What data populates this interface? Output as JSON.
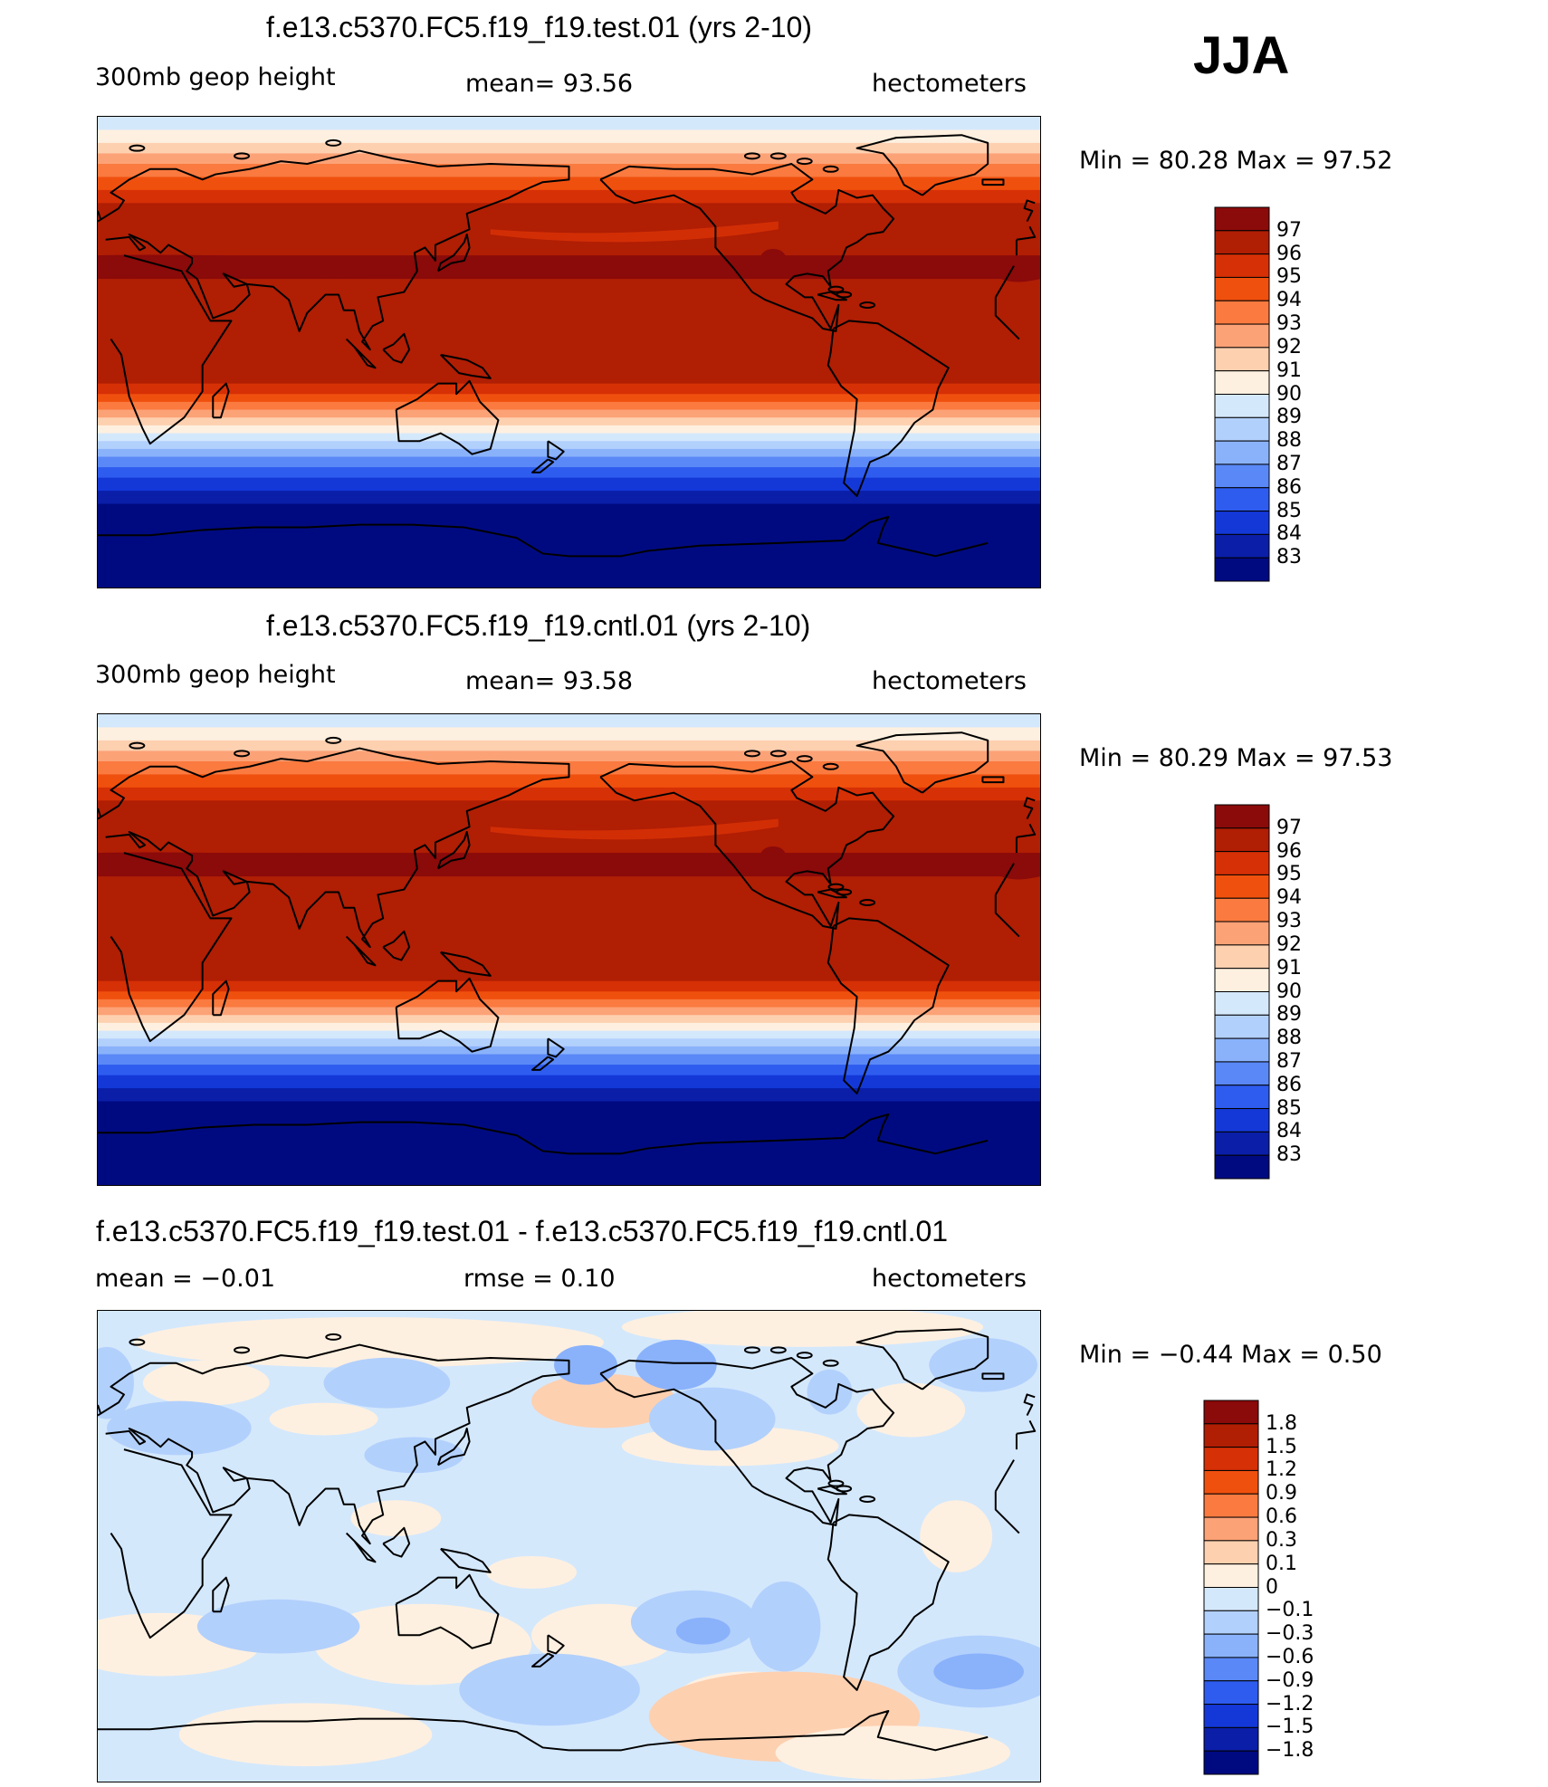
{
  "season": "JJA",
  "panels": [
    {
      "title": "f.e13.c5370.FC5.f19_f19.test.01 (yrs 2-10)",
      "left_label": "300mb geop height",
      "mid_label": "mean=   93.56",
      "units": "hectometers",
      "minmax": "Min =   80.28 Max =   97.52",
      "colorbar_labels": [
        "97",
        "96",
        "95",
        "94",
        "93",
        "92",
        "91",
        "90",
        "89",
        "88",
        "87",
        "86",
        "85",
        "84",
        "83"
      ],
      "colorbar_colors": [
        "#8b0a0a",
        "#b01e04",
        "#d63006",
        "#f0500e",
        "#fa7a3f",
        "#fca277",
        "#fdd0b0",
        "#fef0e0",
        "#d4e8fc",
        "#b2d0fc",
        "#8ab2fb",
        "#5a88f7",
        "#2e5cef",
        "#1438d8",
        "#0a1ea8",
        "#000a80"
      ],
      "field": "height"
    },
    {
      "title": "f.e13.c5370.FC5.f19_f19.cntl.01 (yrs 2-10)",
      "left_label": "300mb geop height",
      "mid_label": "mean=   93.58",
      "units": "hectometers",
      "minmax": "Min =   80.29 Max =   97.53",
      "colorbar_labels": [
        "97",
        "96",
        "95",
        "94",
        "93",
        "92",
        "91",
        "90",
        "89",
        "88",
        "87",
        "86",
        "85",
        "84",
        "83"
      ],
      "colorbar_colors": [
        "#8b0a0a",
        "#b01e04",
        "#d63006",
        "#f0500e",
        "#fa7a3f",
        "#fca277",
        "#fdd0b0",
        "#fef0e0",
        "#d4e8fc",
        "#b2d0fc",
        "#8ab2fb",
        "#5a88f7",
        "#2e5cef",
        "#1438d8",
        "#0a1ea8",
        "#000a80"
      ],
      "field": "height"
    },
    {
      "title": "f.e13.c5370.FC5.f19_f19.test.01 - f.e13.c5370.FC5.f19_f19.cntl.01",
      "left_label": "mean =   −0.01",
      "mid_label": "rmse =    0.10",
      "units": "hectometers",
      "minmax": "Min =   −0.44 Max =    0.50",
      "colorbar_labels": [
        "1.8",
        "1.5",
        "1.2",
        "0.9",
        "0.6",
        "0.3",
        "0.1",
        "0",
        "−0.1",
        "−0.3",
        "−0.6",
        "−0.9",
        "−1.2",
        "−1.5",
        "−1.8"
      ],
      "colorbar_colors": [
        "#8b0a0a",
        "#b01e04",
        "#d63006",
        "#f0500e",
        "#fa7a3f",
        "#fca277",
        "#fdd0b0",
        "#fef0e0",
        "#d4e8fc",
        "#b2d0fc",
        "#8ab2fb",
        "#5a88f7",
        "#2e5cef",
        "#1438d8",
        "#0a1ea8",
        "#000a80"
      ],
      "field": "difference"
    }
  ]
}
